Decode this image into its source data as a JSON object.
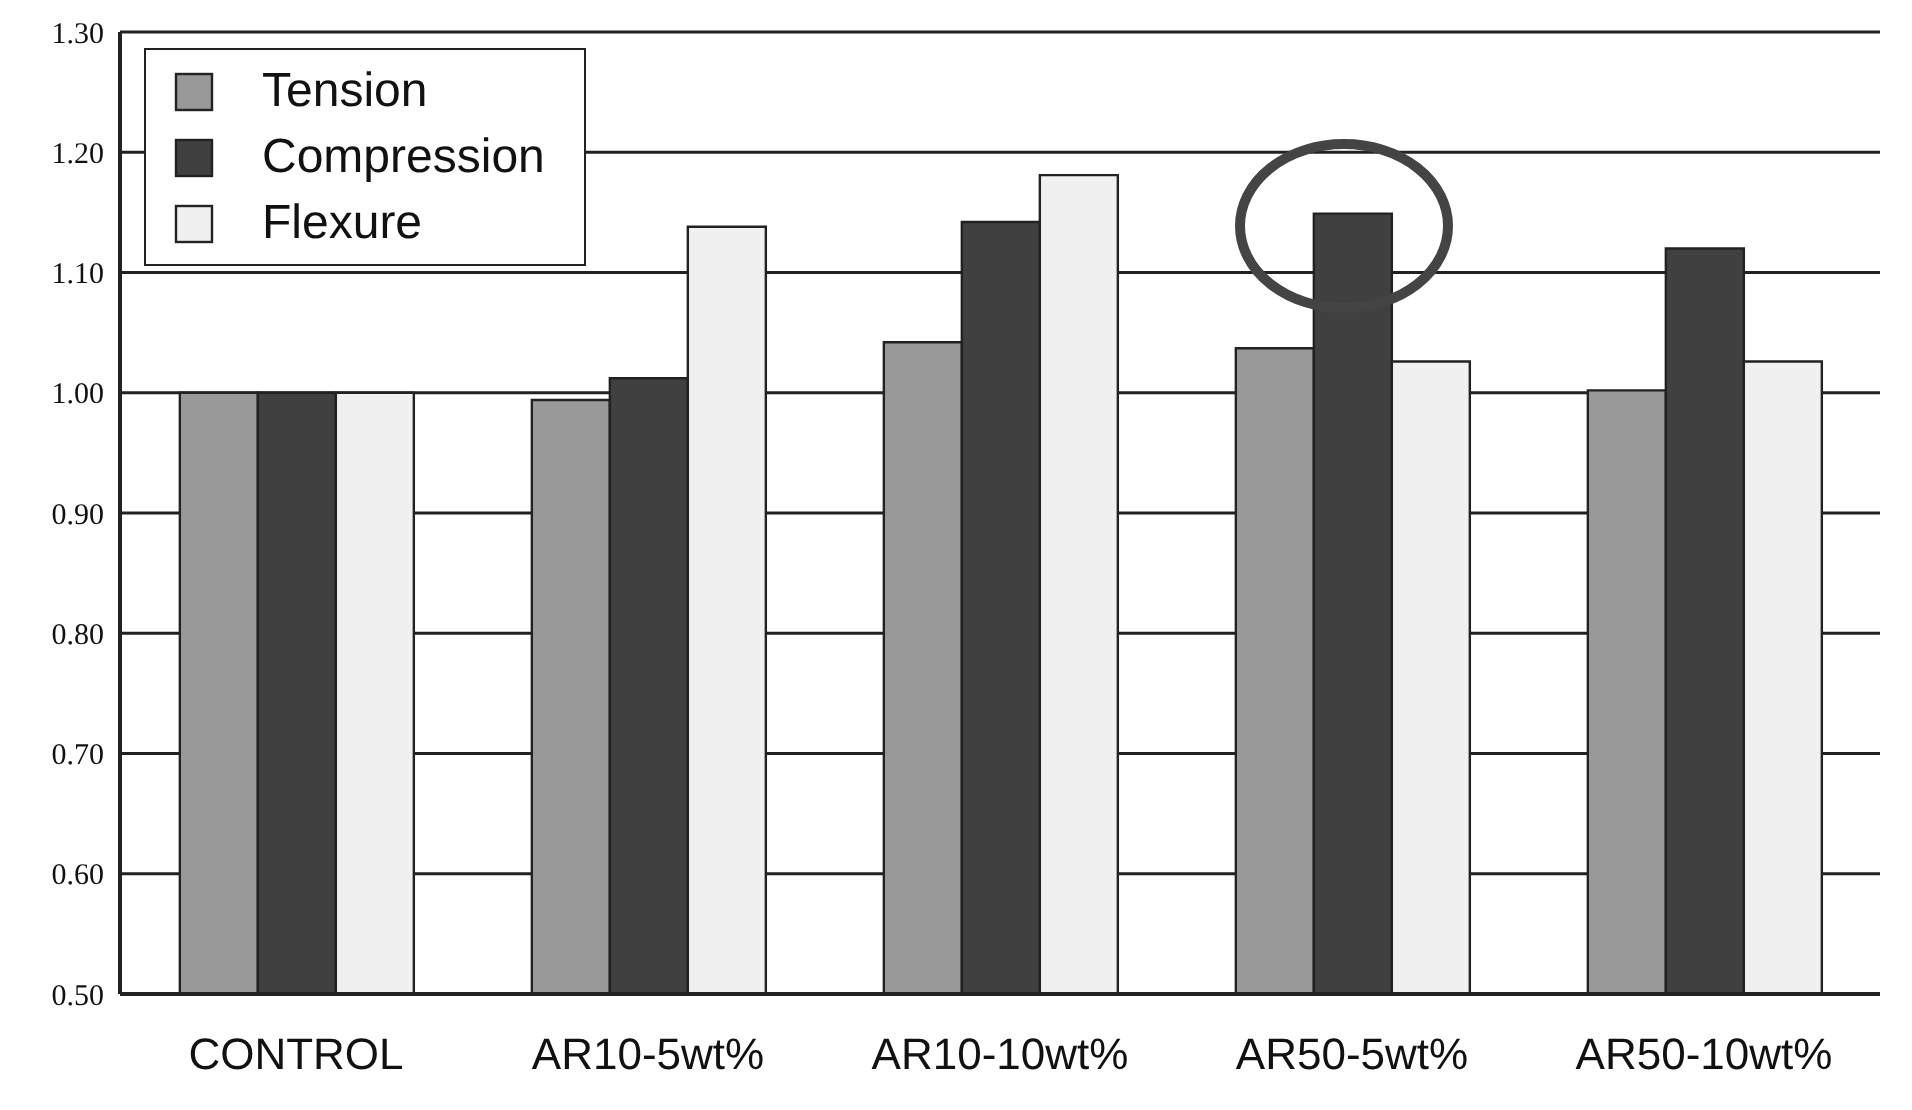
{
  "chart_data": {
    "type": "bar",
    "categories": [
      "CONTROL",
      "AR10-5wt%",
      "AR10-10wt%",
      "AR50-5wt%",
      "AR50-10wt%"
    ],
    "series": [
      {
        "name": "Tension",
        "color": "#999999",
        "values": [
          1.0,
          0.994,
          1.042,
          1.037,
          1.002
        ]
      },
      {
        "name": "Compression",
        "color": "#404040",
        "values": [
          1.0,
          1.012,
          1.142,
          1.149,
          1.12
        ]
      },
      {
        "name": "Flexure",
        "color": "#f0f0f0",
        "values": [
          1.0,
          1.138,
          1.181,
          1.026,
          1.026
        ]
      }
    ],
    "ylim": [
      0.5,
      1.3
    ],
    "yticks": [
      {
        "value": 0.5,
        "label": "0.50"
      },
      {
        "value": 0.6,
        "label": "0.60"
      },
      {
        "value": 0.7,
        "label": "0.70"
      },
      {
        "value": 0.8,
        "label": "0.80"
      },
      {
        "value": 0.9,
        "label": "0.90"
      },
      {
        "value": 1.0,
        "label": "1.00"
      },
      {
        "value": 1.1,
        "label": "1.10"
      },
      {
        "value": 1.2,
        "label": "1.20"
      },
      {
        "value": 1.3,
        "label": "1.30"
      }
    ],
    "grid": "y",
    "legend": "top left"
  }
}
